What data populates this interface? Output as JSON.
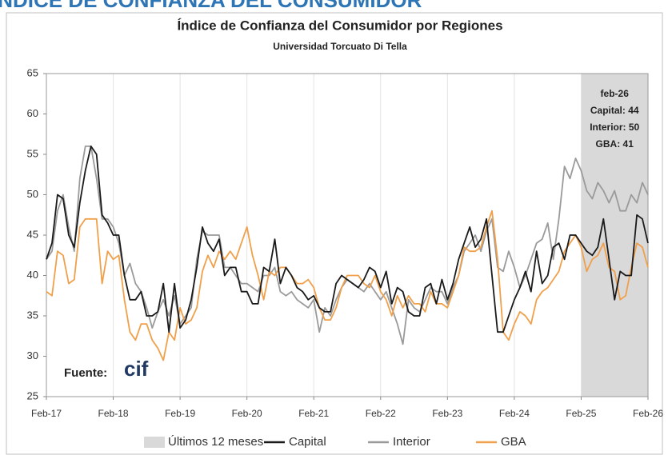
{
  "header": "ÍNDICE DE CONFIANZA DEL CONSUMIDOR",
  "chart_data": {
    "type": "line",
    "title": "Índice de Confianza del Consumidor por Regiones",
    "subtitle": "Universidad Torcuato Di Tella",
    "categories": [
      "Feb-17",
      null,
      null,
      null,
      null,
      null,
      null,
      null,
      null,
      null,
      null,
      null,
      "Feb-18",
      null,
      null,
      null,
      null,
      null,
      null,
      null,
      null,
      null,
      null,
      null,
      "Feb-19",
      null,
      null,
      null,
      null,
      null,
      null,
      null,
      null,
      null,
      null,
      null,
      "Feb-20",
      null,
      null,
      null,
      null,
      null,
      null,
      null,
      null,
      null,
      null,
      null,
      "Feb-21",
      null,
      null,
      null,
      null,
      null,
      null,
      null,
      null,
      null,
      null,
      null,
      "Feb-22",
      null,
      null,
      null,
      null,
      null,
      null,
      null,
      null,
      null,
      null,
      null,
      "Feb-23",
      null,
      null,
      null,
      null,
      null,
      null,
      null,
      null,
      null,
      null,
      null,
      "Feb-24",
      null,
      null,
      null,
      null,
      null,
      null,
      null,
      null,
      null,
      null,
      null,
      "Feb-25",
      null,
      null,
      null,
      null,
      null,
      null,
      null,
      null,
      null,
      null,
      null,
      "Feb-26"
    ],
    "series": [
      {
        "name": "Capital",
        "color": "#1a1a1a",
        "values": [
          42,
          44,
          50,
          49.5,
          45,
          43.5,
          49,
          53,
          56,
          55,
          47.5,
          46.5,
          45,
          45,
          40,
          37,
          37,
          38,
          35,
          35,
          35.5,
          39,
          33,
          39,
          33.5,
          34.5,
          37,
          41,
          46,
          44,
          43,
          44.5,
          40,
          41,
          41,
          38,
          38,
          36.5,
          36.5,
          41,
          40.5,
          44.5,
          39,
          41,
          40,
          38.5,
          38,
          37,
          37.5,
          36,
          35.5,
          35.5,
          39,
          40,
          39.5,
          39,
          38.5,
          39.5,
          41,
          40.5,
          38.5,
          40.5,
          36.5,
          38.5,
          38,
          35.5,
          35,
          35,
          38.5,
          39,
          36.5,
          39.5,
          37,
          39,
          42,
          44,
          46,
          43.5,
          44.5,
          47,
          40,
          33,
          33,
          35,
          37,
          38.5,
          40.5,
          38,
          43,
          39,
          40,
          43.5,
          44,
          42,
          45,
          45,
          44,
          43,
          42.5,
          43.5,
          47,
          42,
          37,
          40.5,
          40,
          40,
          47.5,
          47,
          44
        ]
      },
      {
        "name": "Interior",
        "color": "#9a9a9a",
        "values": [
          42,
          43,
          48,
          50,
          46,
          43,
          52,
          56,
          56,
          52,
          47,
          47,
          46,
          44,
          40,
          41.5,
          39,
          38,
          36,
          33.5,
          35.5,
          37,
          35,
          37.5,
          34,
          35,
          36,
          42,
          45.5,
          45,
          45,
          45,
          41,
          41,
          40,
          39,
          39,
          38.5,
          38,
          40,
          40,
          41,
          38,
          37.5,
          38,
          37,
          36.5,
          36,
          37,
          33,
          36,
          35,
          37,
          38.5,
          39.5,
          39,
          38.5,
          38,
          39,
          38,
          37,
          38,
          36,
          34,
          31.5,
          37,
          36,
          35.5,
          37,
          38.5,
          38,
          38,
          36.5,
          38.5,
          40,
          43,
          44,
          45,
          43,
          45.5,
          47,
          41,
          40.5,
          43,
          41,
          38.5,
          40,
          42,
          44,
          44.5,
          46.5,
          42,
          47,
          53.5,
          52,
          54.5,
          53,
          50.5,
          49.5,
          51.5,
          50.5,
          49,
          50.5,
          48,
          48,
          50,
          49,
          51.5,
          50
        ]
      },
      {
        "name": "GBA",
        "color": "#f0a04b",
        "values": [
          38,
          37.5,
          43,
          42.5,
          39,
          39.5,
          46,
          47,
          47,
          47,
          39,
          43,
          42,
          42.5,
          37,
          33,
          32,
          34,
          34,
          32,
          31,
          29.5,
          33,
          32,
          36,
          34,
          34.5,
          36,
          40.5,
          42.5,
          41,
          43,
          42,
          43,
          42,
          44,
          46,
          42.5,
          40,
          37,
          40.5,
          40,
          41,
          41,
          40,
          39,
          39,
          39.5,
          38.5,
          36,
          34.5,
          34.5,
          36,
          38.5,
          40,
          40,
          40,
          39,
          38.5,
          40,
          38,
          37,
          35,
          37.5,
          36,
          37.5,
          36.5,
          36.5,
          35.5,
          38,
          36.5,
          36.5,
          36,
          38,
          40,
          43.5,
          43,
          43,
          43.5,
          46,
          48,
          42,
          33,
          32,
          34,
          35.5,
          35,
          34,
          37,
          38,
          38.5,
          39.5,
          40.5,
          43,
          44,
          45,
          43.5,
          40.5,
          42,
          42.5,
          44,
          41,
          40.5,
          37,
          37.5,
          41,
          44,
          43.5,
          41
        ]
      }
    ],
    "shade": {
      "name": "Últimos 12 meses",
      "color": "#d9d9d9",
      "start": "Feb-25",
      "end": "Feb-26"
    },
    "annotation": [
      "feb-26",
      "Capital: 44",
      "Interior: 50",
      "GBA: 41"
    ],
    "source": {
      "label": "Fuente:",
      "logo": "cif"
    },
    "ylim": [
      25,
      65
    ],
    "yticks": [
      25,
      30,
      35,
      40,
      45,
      50,
      55,
      60,
      65
    ],
    "grid": "x"
  }
}
